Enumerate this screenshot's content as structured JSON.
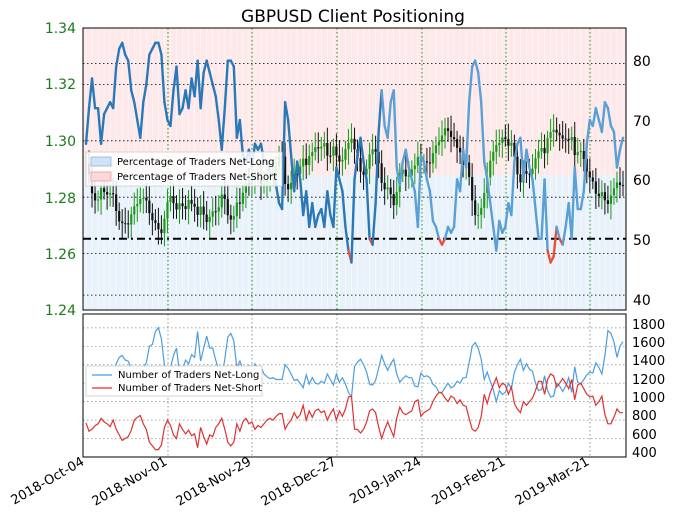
{
  "chart_data": {
    "title": "GBPUSD Client Positioning",
    "type": "line",
    "x_tick_labels": [
      "2018-Oct-04",
      "2018-Nov-01",
      "2018-Nov-29",
      "2018-Dec-27",
      "2019-Jan-24",
      "2019-Feb-21",
      "2019-Mar-21"
    ],
    "top_panel": {
      "price_axis": {
        "ylim": [
          1.24,
          1.34
        ],
        "ticks": [
          "1.24",
          "1.26",
          "1.28",
          "1.30",
          "1.32",
          "1.34"
        ],
        "color": "#1a7a1a"
      },
      "percent_axis": {
        "ylim": [
          38,
          85.5
        ],
        "ticks": [
          "40",
          "50",
          "60",
          "70",
          "80"
        ]
      },
      "legend": [
        "Percentage of Traders Net-Long",
        "Percentage of Traders Net-Short"
      ],
      "reference_level": 50,
      "colors": {
        "long": "#2b78b8",
        "short": "#e8503a",
        "long_fill": "#cfe3f5",
        "short_fill": "#fbd9d9",
        "candle_up": "#1a9a1a",
        "candle_down": "#111111"
      },
      "percent_long_series": [
        66,
        72,
        77,
        72,
        72,
        66,
        71,
        72,
        73,
        72,
        79,
        82,
        83,
        81,
        80,
        75,
        73,
        70,
        67,
        73,
        76,
        81,
        82,
        83,
        83,
        81,
        73,
        70,
        69,
        75,
        79,
        71,
        72,
        75,
        72,
        77,
        74,
        80,
        72,
        78,
        80,
        78,
        76,
        74,
        70,
        65,
        72,
        80,
        80,
        79,
        67,
        70,
        64,
        63,
        65,
        62,
        66,
        65,
        66,
        63,
        63,
        61,
        61,
        59,
        56,
        55,
        73,
        70,
        64,
        58,
        63,
        60,
        54,
        58,
        52,
        56,
        52,
        54,
        55,
        52,
        58,
        54,
        52,
        62,
        60,
        58,
        52,
        48,
        46,
        60,
        64,
        67,
        63,
        60,
        50,
        49,
        56,
        68,
        75,
        69,
        67,
        73,
        75,
        62,
        59,
        63,
        65,
        62,
        60,
        58,
        52,
        64,
        63,
        60,
        58,
        53,
        52,
        50,
        49,
        50,
        52,
        51,
        52,
        60,
        58,
        65,
        62,
        73,
        79,
        80,
        78,
        73,
        63,
        60,
        56,
        52,
        48,
        53,
        51,
        52,
        56,
        54,
        63,
        66,
        67,
        60,
        65,
        62,
        60,
        55,
        50,
        50,
        60,
        48,
        46,
        47,
        52,
        50,
        49,
        52,
        56,
        50,
        62,
        55,
        55,
        58,
        66,
        70,
        69,
        72,
        70,
        68,
        73,
        72,
        69,
        68,
        62,
        65,
        67
      ]
    },
    "bottom_panel": {
      "ylim": [
        400,
        1950
      ],
      "ticks": [
        "400",
        "600",
        "800",
        "1000",
        "1200",
        "1400",
        "1600",
        "1800"
      ],
      "legend": [
        "Number of Traders Net-Long",
        "Number of Traders Net-Short"
      ],
      "net_long_series": [
        1200,
        1280,
        1260,
        1370,
        1290,
        1200,
        1350,
        1290,
        1310,
        1290,
        1410,
        1480,
        1500,
        1450,
        1440,
        1350,
        1300,
        1290,
        1240,
        1370,
        1420,
        1600,
        1620,
        1760,
        1800,
        1680,
        1400,
        1300,
        1370,
        1500,
        1580,
        1310,
        1350,
        1450,
        1410,
        1510,
        1480,
        1760,
        1440,
        1580,
        1710,
        1580,
        1580,
        1450,
        1350,
        1260,
        1460,
        1700,
        1740,
        1660,
        1370,
        1440,
        1350,
        1300,
        1390,
        1330,
        1410,
        1370,
        1380,
        1300,
        1270,
        1250,
        1260,
        1240,
        1240,
        1240,
        1400,
        1360,
        1300,
        1230,
        1240,
        1200,
        1150,
        1290,
        1190,
        1260,
        1200,
        1190,
        1220,
        1200,
        1300,
        1240,
        1180,
        1300,
        1210,
        1260,
        1190,
        1100,
        1050,
        1380,
        1430,
        1460,
        1400,
        1320,
        1190,
        1180,
        1230,
        1360,
        1500,
        1410,
        1340,
        1410,
        1460,
        1300,
        1210,
        1250,
        1280,
        1260,
        1260,
        1170,
        1160,
        1310,
        1270,
        1280,
        1260,
        1190,
        1160,
        1100,
        1100,
        1150,
        1200,
        1150,
        1170,
        1220,
        1200,
        1260,
        1260,
        1420,
        1600,
        1640,
        1580,
        1460,
        1240,
        1320,
        1220,
        1130,
        1000,
        1120,
        1080,
        1100,
        1200,
        1140,
        1320,
        1400,
        1460,
        1340,
        1410,
        1350,
        1330,
        1200,
        1120,
        1130,
        1280,
        1120,
        1050,
        1060,
        1200,
        1170,
        1110,
        1170,
        1260,
        1100,
        1380,
        1210,
        1190,
        1240,
        1290,
        1320,
        1310,
        1420,
        1370,
        1300,
        1500,
        1770,
        1740,
        1650,
        1480,
        1600,
        1650
      ],
      "net_short_series": [
        770,
        680,
        700,
        740,
        760,
        820,
        780,
        760,
        730,
        800,
        700,
        640,
        580,
        600,
        620,
        690,
        800,
        830,
        850,
        760,
        700,
        560,
        520,
        480,
        480,
        530,
        720,
        800,
        740,
        640,
        600,
        760,
        700,
        650,
        690,
        630,
        650,
        500,
        720,
        620,
        540,
        640,
        620,
        720,
        760,
        820,
        700,
        560,
        520,
        560,
        760,
        680,
        780,
        820,
        760,
        780,
        700,
        740,
        720,
        760,
        800,
        820,
        800,
        840,
        870,
        870,
        700,
        760,
        800,
        880,
        820,
        860,
        960,
        800,
        900,
        830,
        900,
        920,
        880,
        900,
        800,
        870,
        920,
        800,
        900,
        840,
        920,
        1050,
        1060,
        700,
        700,
        660,
        700,
        780,
        900,
        920,
        880,
        730,
        600,
        700,
        780,
        700,
        620,
        820,
        940,
        880,
        860,
        880,
        900,
        1000,
        1020,
        840,
        880,
        900,
        920,
        1000,
        1060,
        1100,
        1090,
        1040,
        1000,
        1060,
        1040,
        980,
        1020,
        960,
        950,
        820,
        700,
        680,
        720,
        840,
        1080,
        980,
        1100,
        1180,
        1260,
        1150,
        1200,
        1180,
        1080,
        1160,
        980,
        920,
        880,
        1000,
        960,
        1000,
        1040,
        1120,
        1220,
        1220,
        1080,
        1240,
        1300,
        1280,
        1160,
        1200,
        1250,
        1200,
        1140,
        1240,
        1020,
        1180,
        1200,
        1140,
        1080,
        1050,
        1060,
        960,
        1000,
        1060,
        860,
        760,
        760,
        830,
        920,
        880,
        880
      ]
    }
  }
}
